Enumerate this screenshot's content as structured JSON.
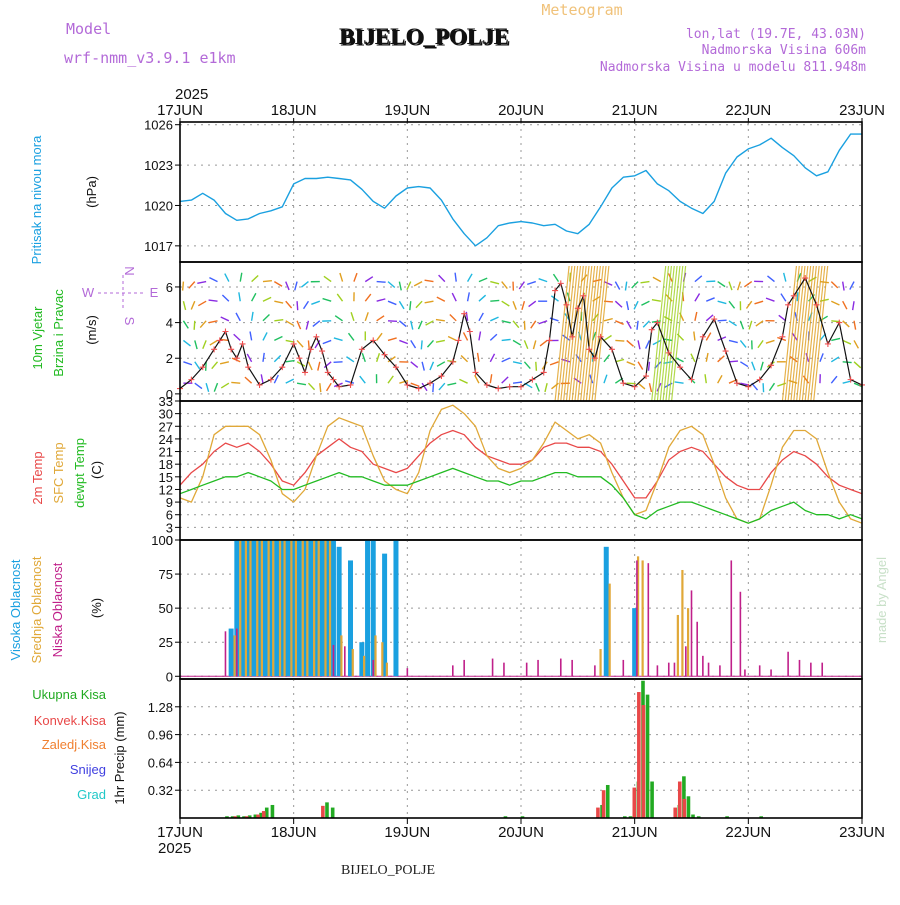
{
  "header": {
    "model_label": "Model",
    "model_name": "wrf-nmm_v3.9.1  e1km",
    "title": "BIJELO_POLJE",
    "meteogram": "Meteogram",
    "lonlat": "lon,lat (19.7E, 43.03N)",
    "altitude": "Nadmorska Visina 606m",
    "model_altitude": "Nadmorska Visina u modelu 811.948m"
  },
  "footer": {
    "station": "BIJELO_POLJE",
    "watermark": "made by Angel"
  },
  "time_axis": {
    "year_top": "2025",
    "year_bottom": "2025",
    "labels": [
      "17JUN",
      "18JUN",
      "19JUN",
      "20JUN",
      "21JUN",
      "22JUN",
      "23JUN"
    ]
  },
  "colors": {
    "pressure": "#1aa0e0",
    "temp2m": "#e84848",
    "sfc": "#e0a838",
    "dewpt": "#22bb22",
    "high_cloud": "#1aa0e0",
    "mid_cloud": "#e0a838",
    "low_cloud": "#c0208a",
    "total_precip": "#22aa22",
    "conv_precip": "#e84848",
    "frozen": "#f08030",
    "snow": "#4040e0",
    "graupel": "#20c8c8",
    "wind_label": "#22bb22",
    "wind_rose": "#b36ad8"
  },
  "chart_data": [
    {
      "type": "line",
      "id": "pressure",
      "labels": [
        "Pritisak na nivou mora",
        "(hPa)"
      ],
      "yticks": [
        1017,
        1020,
        1023,
        1026
      ],
      "ylim": [
        1015.8,
        1026.2
      ],
      "series": [
        {
          "x": [
            0,
            0.1,
            0.2,
            0.3,
            0.4,
            0.5,
            0.6,
            0.7,
            0.8,
            0.9,
            1.0,
            1.1,
            1.2,
            1.3,
            1.4,
            1.5,
            1.6,
            1.7,
            1.8,
            1.9,
            2.0,
            2.1,
            2.2,
            2.3,
            2.4,
            2.5,
            2.6,
            2.7,
            2.8,
            2.9,
            3.0,
            3.1,
            3.2,
            3.3,
            3.4,
            3.5,
            3.6,
            3.7,
            3.8,
            3.9,
            4.0,
            4.1,
            4.2,
            4.3,
            4.4,
            4.5,
            4.6,
            4.7,
            4.8,
            4.9,
            5.0,
            5.1,
            5.2,
            5.3,
            5.4,
            5.5,
            5.6,
            5.7,
            5.8,
            5.9,
            6.0
          ],
          "y": [
            1020.3,
            1020.4,
            1020.9,
            1020.4,
            1019.4,
            1018.9,
            1019.0,
            1019.4,
            1019.6,
            1019.9,
            1021.6,
            1022.0,
            1022.0,
            1022.1,
            1022.0,
            1021.9,
            1021.2,
            1020.3,
            1019.8,
            1020.7,
            1021.3,
            1021.4,
            1021.3,
            1020.4,
            1019.0,
            1017.9,
            1017.0,
            1017.6,
            1018.5,
            1018.7,
            1018.8,
            1018.7,
            1018.5,
            1018.6,
            1018.1,
            1017.9,
            1018.6,
            1019.9,
            1021.3,
            1022.1,
            1022.2,
            1022.6,
            1021.6,
            1021.1,
            1020.3,
            1019.8,
            1019.4,
            1020.3,
            1022.4,
            1023.6,
            1024.2,
            1024.5,
            1025.0,
            1024.3,
            1023.7,
            1022.8,
            1022.2,
            1022.5,
            1024.1,
            1025.3,
            1025.3
          ]
        }
      ]
    },
    {
      "type": "line",
      "id": "wind",
      "labels": [
        "10m Vjetar",
        "Brzina i Pravac",
        "(m/s)"
      ],
      "rose": [
        "N",
        "W",
        "E",
        "S"
      ],
      "yticks": [
        0,
        2,
        4,
        6
      ],
      "ylim": [
        -0.4,
        7.4
      ],
      "series": [
        {
          "name": "speed",
          "x": [
            0,
            0.1,
            0.2,
            0.3,
            0.35,
            0.4,
            0.45,
            0.5,
            0.55,
            0.6,
            0.7,
            0.8,
            0.9,
            1.0,
            1.05,
            1.1,
            1.15,
            1.2,
            1.25,
            1.3,
            1.35,
            1.4,
            1.5,
            1.6,
            1.7,
            1.8,
            1.9,
            2.0,
            2.1,
            2.2,
            2.3,
            2.4,
            2.45,
            2.5,
            2.55,
            2.6,
            2.7,
            2.8,
            2.9,
            3.0,
            3.1,
            3.2,
            3.25,
            3.3,
            3.35,
            3.4,
            3.45,
            3.5,
            3.55,
            3.6,
            3.65,
            3.7,
            3.8,
            3.9,
            4.0,
            4.1,
            4.15,
            4.2,
            4.3,
            4.4,
            4.5,
            4.6,
            4.7,
            4.8,
            4.9,
            5.0,
            5.1,
            5.2,
            5.3,
            5.35,
            5.4,
            5.5,
            5.6,
            5.7,
            5.8,
            5.9,
            6.0
          ],
          "y": [
            0.3,
            0.8,
            1.5,
            2.5,
            3.0,
            3.5,
            2.5,
            2.0,
            2.8,
            1.5,
            0.5,
            0.8,
            1.5,
            2.8,
            2.0,
            1.2,
            2.5,
            3.2,
            2.4,
            1.2,
            0.8,
            0.4,
            0.5,
            2.5,
            3.0,
            2.2,
            1.5,
            0.5,
            0.3,
            0.6,
            1.0,
            1.8,
            3.0,
            4.5,
            3.5,
            1.2,
            0.5,
            0.3,
            0.4,
            0.4,
            0.8,
            1.2,
            3.0,
            5.8,
            6.2,
            5.0,
            3.2,
            4.8,
            5.5,
            2.5,
            2.0,
            3.2,
            2.5,
            0.6,
            0.4,
            1.0,
            3.6,
            4.0,
            2.3,
            1.5,
            0.8,
            3.2,
            4.2,
            2.4,
            0.6,
            0.4,
            0.8,
            1.6,
            3.2,
            5.0,
            5.5,
            6.5,
            5.0,
            2.8,
            4.0,
            0.8,
            0.5
          ]
        }
      ]
    },
    {
      "type": "line",
      "id": "temperature",
      "labels": [
        "2m Temp",
        "SFC Temp",
        "dewpt Temp",
        "(C)"
      ],
      "yticks": [
        0,
        3,
        6,
        9,
        12,
        15,
        18,
        21,
        24,
        27,
        30,
        33
      ],
      "ylim": [
        0,
        33
      ],
      "x": [
        0,
        0.1,
        0.2,
        0.3,
        0.4,
        0.5,
        0.6,
        0.7,
        0.8,
        0.9,
        1.0,
        1.1,
        1.2,
        1.3,
        1.4,
        1.5,
        1.6,
        1.7,
        1.8,
        1.9,
        2.0,
        2.1,
        2.2,
        2.3,
        2.4,
        2.5,
        2.6,
        2.7,
        2.8,
        2.9,
        3.0,
        3.1,
        3.2,
        3.3,
        3.4,
        3.5,
        3.6,
        3.7,
        3.8,
        3.9,
        4.0,
        4.1,
        4.2,
        4.3,
        4.4,
        4.5,
        4.6,
        4.7,
        4.8,
        4.9,
        5.0,
        5.1,
        5.2,
        5.3,
        5.4,
        5.5,
        5.6,
        5.7,
        5.8,
        5.9,
        6.0
      ],
      "series": [
        {
          "name": "2m Temp",
          "y": [
            13,
            16,
            18,
            21,
            23,
            22,
            23,
            21,
            18,
            14,
            13,
            16,
            20,
            22,
            24,
            22,
            21,
            18,
            17,
            16,
            17,
            20,
            23,
            25,
            26,
            25,
            22,
            20,
            19,
            18,
            18,
            19,
            22,
            23,
            23,
            22,
            22,
            21,
            18,
            14,
            10,
            10,
            14,
            19,
            21,
            22,
            21,
            18,
            15,
            13,
            12,
            12,
            16,
            19,
            21,
            20,
            18,
            15,
            13,
            12,
            11
          ]
        },
        {
          "name": "SFC Temp",
          "y": [
            10,
            9,
            15,
            25,
            27,
            27,
            27,
            25,
            19,
            11,
            9,
            12,
            20,
            27,
            29,
            28,
            27,
            20,
            14,
            12,
            11,
            16,
            26,
            31,
            32,
            30,
            27,
            20,
            17,
            16,
            17,
            19,
            23,
            28,
            26,
            24,
            25,
            23,
            16,
            10,
            6,
            7,
            14,
            22,
            26,
            27,
            25,
            18,
            10,
            5,
            4,
            5,
            13,
            22,
            26,
            26,
            24,
            16,
            9,
            5,
            4
          ]
        },
        {
          "name": "dewpt Temp",
          "y": [
            11,
            12,
            13,
            14,
            15,
            15,
            16,
            15,
            14,
            12,
            12,
            13,
            14,
            15,
            16,
            15,
            15,
            14,
            13,
            13,
            13,
            14,
            15,
            16,
            17,
            16,
            15,
            14,
            14,
            13,
            14,
            14,
            15,
            16,
            16,
            15,
            15,
            15,
            13,
            10,
            6,
            5,
            7,
            8,
            9,
            9,
            8,
            7,
            6,
            5,
            4,
            5,
            7,
            8,
            9,
            7,
            6,
            6,
            5,
            6,
            5
          ]
        }
      ]
    },
    {
      "type": "bar",
      "id": "cloud",
      "labels": [
        "Visoka Oblacnost",
        "Srednja Oblacnost",
        "Niska Oblacnost",
        "(%)"
      ],
      "yticks": [
        0,
        25,
        50,
        75,
        100
      ],
      "ylim": [
        -2,
        100
      ],
      "series": [
        {
          "name": "Visoka Oblacnost",
          "x": [
            0.45,
            0.5,
            0.55,
            0.6,
            0.65,
            0.7,
            0.75,
            0.8,
            0.85,
            0.9,
            0.95,
            1.0,
            1.05,
            1.1,
            1.15,
            1.2,
            1.25,
            1.3,
            1.35,
            1.4,
            1.5,
            1.6,
            1.65,
            1.7,
            1.8,
            1.9,
            3.75,
            4.0
          ],
          "y": [
            35,
            100,
            100,
            100,
            100,
            100,
            100,
            100,
            100,
            100,
            100,
            100,
            100,
            100,
            100,
            100,
            100,
            100,
            100,
            95,
            85,
            25,
            100,
            100,
            90,
            100,
            95,
            50
          ]
        },
        {
          "name": "Srednja Oblacnost",
          "x": [
            0.48,
            0.53,
            0.58,
            0.62,
            0.68,
            0.72,
            0.78,
            0.82,
            0.88,
            0.92,
            0.98,
            1.02,
            1.08,
            1.12,
            1.18,
            1.22,
            1.28,
            1.32,
            1.42,
            1.52,
            1.62,
            1.72,
            1.78,
            1.82,
            3.7,
            3.78,
            4.03,
            4.07,
            4.38,
            4.42,
            4.47
          ],
          "y": [
            30,
            100,
            100,
            100,
            100,
            100,
            100,
            100,
            100,
            100,
            100,
            100,
            100,
            100,
            100,
            100,
            100,
            100,
            30,
            20,
            15,
            30,
            25,
            10,
            20,
            68,
            88,
            85,
            45,
            78,
            50
          ]
        },
        {
          "name": "Niska Oblacnost",
          "x": [
            0.4,
            0.5,
            1.35,
            1.45,
            1.7,
            2.0,
            2.4,
            2.5,
            2.75,
            2.85,
            3.05,
            3.15,
            3.35,
            3.45,
            3.65,
            3.9,
            4.02,
            4.12,
            4.2,
            4.3,
            4.35,
            4.45,
            4.5,
            4.55,
            4.6,
            4.65,
            4.75,
            4.85,
            4.93,
            4.97,
            5.1,
            5.2,
            5.35,
            5.45,
            5.55,
            5.65,
            6.6
          ],
          "y": [
            33,
            35,
            23,
            22,
            12,
            6,
            8,
            12,
            13,
            10,
            10,
            12,
            13,
            12,
            8,
            12,
            85,
            83,
            8,
            10,
            10,
            22,
            63,
            40,
            15,
            10,
            8,
            85,
            62,
            5,
            8,
            5,
            18,
            12,
            10,
            10,
            22
          ]
        }
      ]
    },
    {
      "type": "bar",
      "id": "precip",
      "labels": [
        "Ukupna Kisa",
        "Konvek.Kisa",
        "Zaledj.Kisa",
        "Snijeg",
        "Grad",
        "1hr Precip (mm)"
      ],
      "yticks": [
        0.32,
        0.64,
        0.96,
        1.28
      ],
      "ylim": [
        0,
        1.6
      ],
      "series": [
        {
          "name": "Ukupna Kisa",
          "x": [
            0.4,
            0.45,
            0.5,
            0.55,
            0.6,
            0.65,
            0.7,
            0.75,
            0.8,
            1.28,
            1.33,
            2.85,
            3.0,
            3.7,
            3.75,
            3.9,
            3.95,
            4.02,
            4.06,
            4.1,
            4.14,
            4.38,
            4.42,
            4.46,
            4.5,
            4.55,
            4.8,
            5.1
          ],
          "y": [
            0.02,
            0.02,
            0.03,
            0.02,
            0.03,
            0.04,
            0.06,
            0.12,
            0.15,
            0.18,
            0.12,
            0.02,
            0.02,
            0.15,
            0.38,
            0.02,
            0.02,
            0.42,
            1.58,
            1.42,
            0.42,
            0.15,
            0.48,
            0.25,
            0.04,
            0.02,
            0.02,
            0.02
          ]
        },
        {
          "name": "Konvek.Kisa",
          "x": [
            0.5,
            0.6,
            0.7,
            0.75,
            1.27,
            3.69,
            3.74,
            4.01,
            4.05,
            4.09,
            4.37,
            4.41,
            4.45
          ],
          "y": [
            0.02,
            0.02,
            0.04,
            0.08,
            0.14,
            0.12,
            0.32,
            0.35,
            1.45,
            1.3,
            0.12,
            0.42,
            0.22
          ]
        }
      ]
    }
  ]
}
